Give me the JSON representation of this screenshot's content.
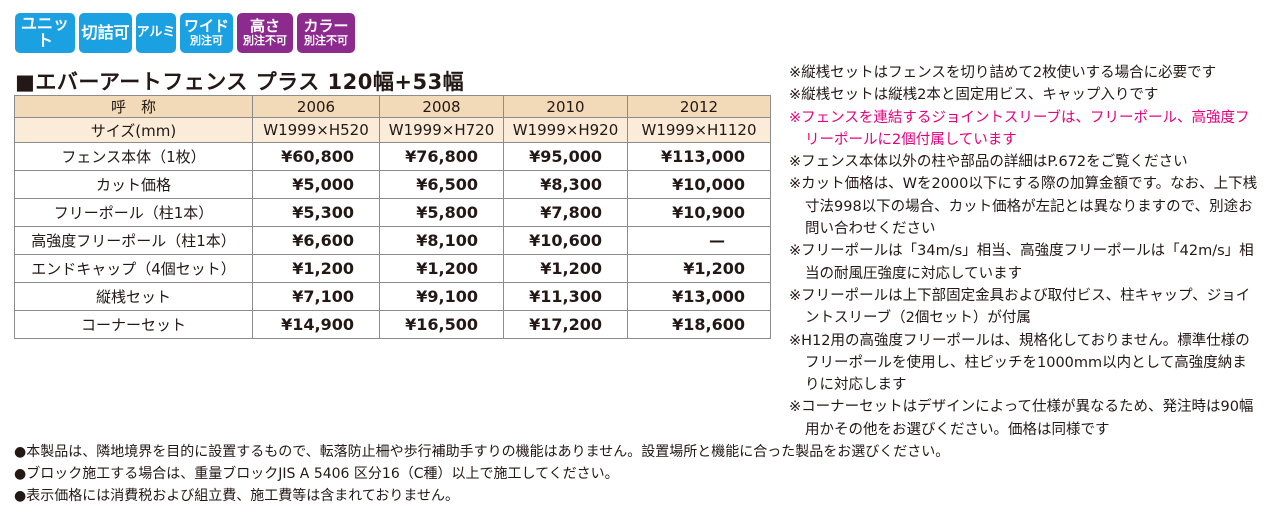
{
  "badges": [
    {
      "line1": "ユニット",
      "line2": "",
      "color": "#1ba1e2"
    },
    {
      "line1": "切詰可",
      "line2": "",
      "color": "#1ba1e2"
    },
    {
      "line1": "アルミ",
      "line2": "",
      "color": "#1ba1e2"
    },
    {
      "line1": "ワイド",
      "line2": "別注可",
      "color": "#1ba1e2"
    },
    {
      "line1": "高さ",
      "line2": "別注不可",
      "color": "#8c2a8e"
    },
    {
      "line1": "カラー",
      "line2": "別注不可",
      "color": "#8c2a8e"
    }
  ],
  "title": "■エバーアートフェンス プラス 120幅+53幅",
  "table": {
    "header": [
      "呼　称",
      "2006",
      "2008",
      "2010",
      "2012"
    ],
    "size_row": [
      "サイズ(mm)",
      "W1999×H520",
      "W1999×H720",
      "W1999×H920",
      "W1999×H1120"
    ],
    "rows": [
      {
        "name": "フェンス本体（1枚）",
        "values": [
          "¥60,800",
          "¥76,800",
          "¥95,000",
          "¥113,000"
        ]
      },
      {
        "name": "カット価格",
        "values": [
          "¥5,000",
          "¥6,500",
          "¥8,300",
          "¥10,000"
        ]
      },
      {
        "name": "フリーポール（柱1本）",
        "values": [
          "¥5,300",
          "¥5,800",
          "¥7,800",
          "¥10,900"
        ]
      },
      {
        "name": "高強度フリーポール（柱1本）",
        "values": [
          "¥6,600",
          "¥8,100",
          "¥10,600",
          "—"
        ]
      },
      {
        "name": "エンドキャップ（4個セット）",
        "values": [
          "¥1,200",
          "¥1,200",
          "¥1,200",
          "¥1,200"
        ]
      },
      {
        "name": "縦桟セット",
        "values": [
          "¥7,100",
          "¥9,100",
          "¥11,300",
          "¥13,000"
        ]
      },
      {
        "name": "コーナーセット",
        "values": [
          "¥14,900",
          "¥16,500",
          "¥17,200",
          "¥18,600"
        ]
      }
    ]
  },
  "notes": [
    {
      "text": "※縦桟セットはフェンスを切り詰めて2枚使いする場合に必要です",
      "highlight": false
    },
    {
      "text": "※縦桟セットは縦桟2本と固定用ビス、キャップ入りです",
      "highlight": false
    },
    {
      "text": "※フェンスを連結するジョイントスリーブは、フリーポール、高強度フリーポールに2個付属しています",
      "highlight": true
    },
    {
      "text": "※フェンス本体以外の柱や部品の詳細はP.672をご覧ください",
      "highlight": false
    },
    {
      "text": "※カット価格は、Wを2000以下にする際の加算金額です。なお、上下桟寸法998以下の場合、カット価格が左記とは異なりますので、別途お問い合わせください",
      "highlight": false
    },
    {
      "text": "※フリーポールは「34m/s」相当、高強度フリーポールは「42m/s」相当の耐風圧強度に対応しています",
      "highlight": false
    },
    {
      "text": "※フリーポールは上下部固定金具および取付ビス、柱キャップ、ジョイントスリーブ（2個セット）が付属",
      "highlight": false
    },
    {
      "text": "※H12用の高強度フリーポールは、規格化しておりません。標準仕様のフリーポールを使用し、柱ピッチを1000mm以内として高強度納まりに対応します",
      "highlight": false
    },
    {
      "text": "※コーナーセットはデザインによって仕様が異なるため、発注時は90幅用かその他をお選びください。価格は同様です",
      "highlight": false
    }
  ],
  "footer": [
    "●本製品は、隣地境界を目的に設置するもので、転落防止柵や歩行補助手すりの機能はありません。設置場所と機能に合った製品をお選びください。",
    "●ブロック施工する場合は、重量ブロックJIS A 5406 区分16（C種）以上で施工してください。",
    "●表示価格には消費税および組立費、施工費等は含まれておりません。"
  ]
}
